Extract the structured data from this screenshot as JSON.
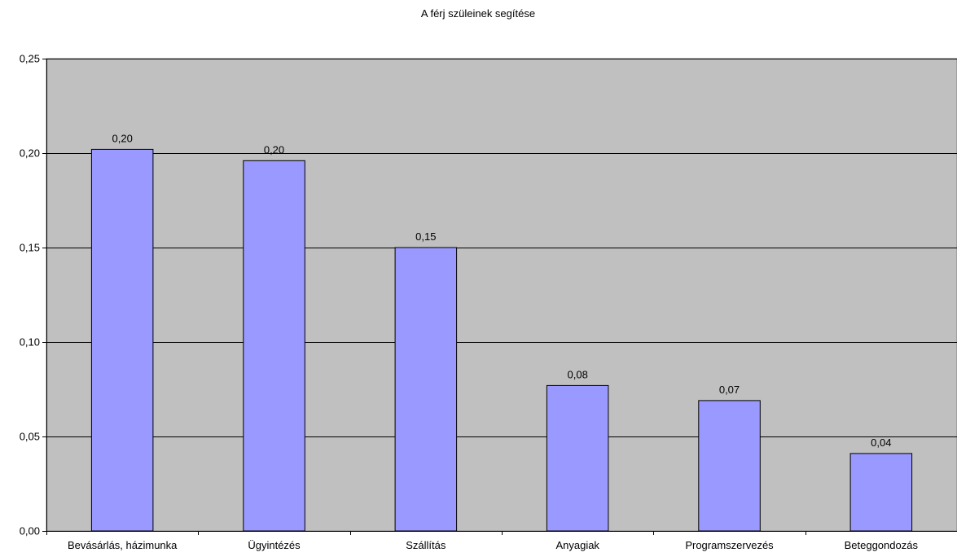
{
  "chart_data": {
    "type": "bar",
    "title": "A férj szüleinek segítése",
    "xlabel": "",
    "ylabel": "",
    "categories": [
      "Bevásárlás, házimunka",
      "Ügyintézés",
      "Szállítás",
      "Anyagiak",
      "Programszervezés",
      "Beteggondozás"
    ],
    "values": [
      0.202,
      0.196,
      0.15,
      0.077,
      0.069,
      0.041
    ],
    "data_labels": [
      "0,20",
      "0,20",
      "0,15",
      "0,08",
      "0,07",
      "0,04"
    ],
    "ylim": [
      0,
      0.25
    ],
    "yticks": [
      0,
      0.05,
      0.1,
      0.15,
      0.2,
      0.25
    ],
    "ytick_labels": [
      "0,00",
      "0,05",
      "0,10",
      "0,15",
      "0,20",
      "0,25"
    ],
    "grid": true,
    "legend": "none",
    "colors": {
      "plot_background": "#c0c0c0",
      "bar_fill": "#9999ff",
      "bar_stroke": "#000000",
      "gridline": "#000000"
    }
  }
}
